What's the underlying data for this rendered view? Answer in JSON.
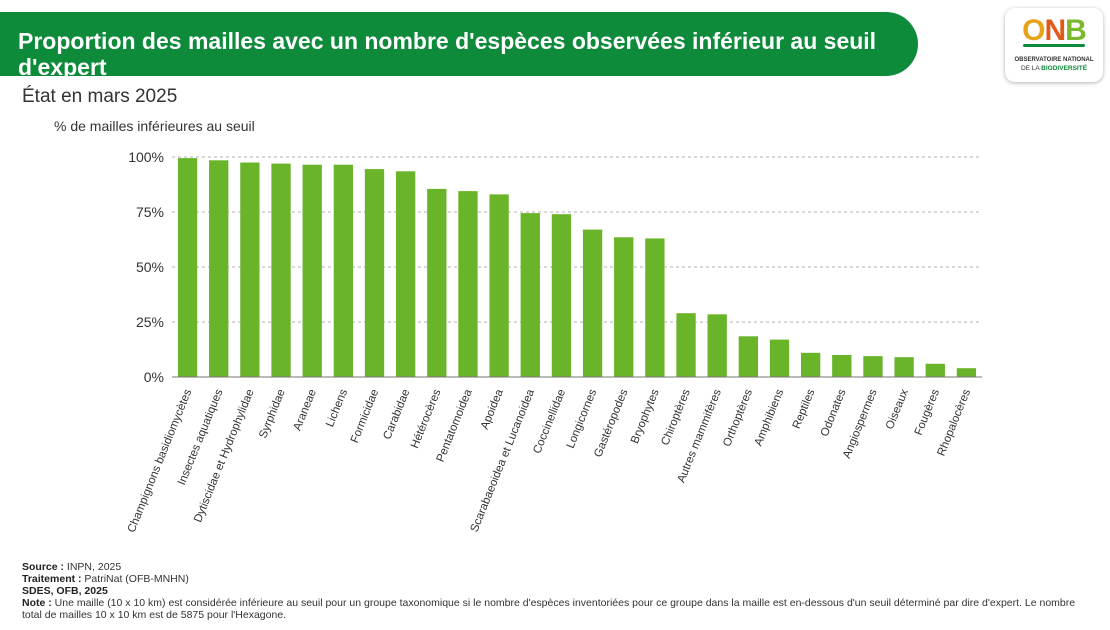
{
  "header": {
    "title": "Proportion des mailles avec un nombre d'espèces observées inférieur au seuil d'expert",
    "subtitle": "État en mars 2025"
  },
  "logo": {
    "letters": [
      "O",
      "N",
      "B"
    ],
    "line1": "OBSERVATOIRE NATIONAL",
    "line2_prefix": "DE LA ",
    "line2_strong": "BIODIVERSITÉ",
    "colors": {
      "O": "#e8a21a",
      "N": "#e05a1a",
      "B": "#7ab82e",
      "bar": "#0e8a3b"
    }
  },
  "chart_data": {
    "type": "bar",
    "ylabel": "% de mailles inférieures au seuil",
    "ylim": [
      0,
      100
    ],
    "yticks": [
      0,
      25,
      50,
      75,
      100
    ],
    "ytick_labels": [
      "0%",
      "25%",
      "50%",
      "75%",
      "100%"
    ],
    "grid": true,
    "bar_color": "#6ab42a",
    "categories": [
      "Champignons basidiomycètes",
      "Insectes aquatiques",
      "Dytiscidae et Hydrophylidae",
      "Syrphidae",
      "Araneae",
      "Lichens",
      "Formicidae",
      "Carabidae",
      "Hétérocères",
      "Pentatomoidea",
      "Apoidea",
      "Scarabaeoidea et Lucanoidea",
      "Coccinellidae",
      "Longicornes",
      "Gastéropodes",
      "Bryophytes",
      "Chiroptères",
      "Autres mammifères",
      "Orthoptères",
      "Amphibiens",
      "Reptiles",
      "Odonates",
      "Angiospermes",
      "Oiseaux",
      "Fougères",
      "Rhopalocères"
    ],
    "values": [
      99.5,
      98.5,
      97.5,
      97,
      96.5,
      96.5,
      94.5,
      93.5,
      85.5,
      84.5,
      83,
      74.5,
      74,
      67,
      63.5,
      63,
      29,
      28.5,
      18.5,
      17,
      11,
      10,
      9.5,
      9,
      6,
      4
    ]
  },
  "footer": {
    "source_label": "Source :",
    "source_value": " INPN, 2025",
    "treatment_label": "Traitement :",
    "treatment_value": " PatriNat (OFB-MNHN)",
    "credit": "SDES, OFB, 2025",
    "note_label": "Note :",
    "note_value": " Une maille (10 x 10 km) est considérée inférieure au seuil pour un groupe taxonomique si le nombre d'espèces inventoriées pour ce groupe dans la maille est en-dessous d'un seuil déterminé par dire d'expert. Le nombre total de mailles 10 x 10 km est de 5875 pour l'Hexagone."
  }
}
